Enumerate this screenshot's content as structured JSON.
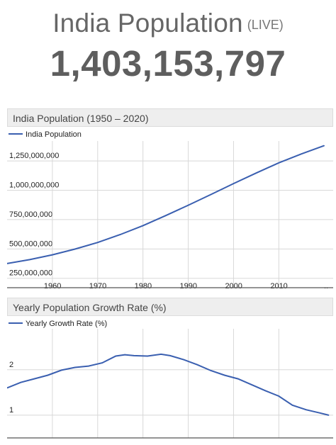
{
  "header": {
    "title": "India Population",
    "live": "(LIVE)",
    "counter": "1,403,153,797"
  },
  "colors": {
    "line": "#3a5fb0",
    "grid": "#d8d8d8",
    "axis": "#555555"
  },
  "chart_data": [
    {
      "type": "line",
      "title": "India Population (1950 – 2020)",
      "legend": "top-left",
      "grid": true,
      "series": [
        {
          "name": "India Population",
          "x": [
            1950,
            1955,
            1960,
            1965,
            1970,
            1975,
            1980,
            1985,
            1990,
            1995,
            2000,
            2005,
            2010,
            2015,
            2020
          ],
          "values": [
            376000000,
            409000000,
            450000000,
            499000000,
            555000000,
            623000000,
            699000000,
            784000000,
            873000000,
            964000000,
            1057000000,
            1147000000,
            1234000000,
            1310000000,
            1380000000
          ]
        }
      ],
      "xlim": [
        1950,
        2022
      ],
      "ylim": [
        200000000,
        1420000000
      ],
      "x_ticks": [
        1960,
        1970,
        1980,
        1990,
        2000,
        2010
      ],
      "y_ticks": [
        250000000,
        500000000,
        750000000,
        1000000000,
        1250000000
      ],
      "x_tick_labels": [
        "1960",
        "1970",
        "1980",
        "1990",
        "2000",
        "2010"
      ],
      "y_tick_labels": [
        "250,000,000",
        "500,000,000",
        "750,000,000",
        "1,000,000,000",
        "1,250,000,000"
      ],
      "x_overflow_label": ".."
    },
    {
      "type": "line",
      "title": "Yearly Population Growth Rate (%)",
      "legend": "top-left",
      "grid": true,
      "series": [
        {
          "name": "Yearly Growth Rate (%)",
          "x": [
            1950,
            1953,
            1956,
            1959,
            1962,
            1965,
            1968,
            1971,
            1974,
            1976,
            1978,
            1981,
            1984,
            1986,
            1989,
            1992,
            1995,
            1998,
            2001,
            2004,
            2007,
            2010,
            2013,
            2016,
            2019,
            2021
          ],
          "values": [
            1.6,
            1.72,
            1.8,
            1.88,
            1.99,
            2.05,
            2.08,
            2.15,
            2.3,
            2.33,
            2.31,
            2.3,
            2.34,
            2.31,
            2.22,
            2.11,
            1.98,
            1.88,
            1.8,
            1.67,
            1.54,
            1.42,
            1.22,
            1.12,
            1.05,
            1.0
          ]
        }
      ],
      "xlim": [
        1950,
        2022
      ],
      "ylim": [
        0.5,
        2.9
      ],
      "x_ticks": [
        1960,
        1970,
        1980,
        1990,
        2000,
        2010
      ],
      "y_ticks": [
        1,
        2
      ],
      "x_tick_labels": [
        "1960",
        "1970",
        "1980",
        "1990",
        "2000",
        "2010"
      ],
      "y_tick_labels": [
        "1",
        "2"
      ],
      "x_overflow_label": ".."
    }
  ]
}
